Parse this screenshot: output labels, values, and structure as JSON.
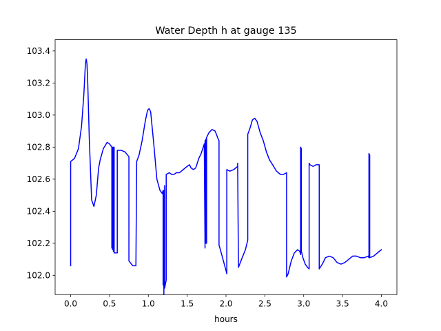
{
  "chart_data": {
    "type": "line",
    "title": "Water Depth h at gauge 135",
    "xlabel": "hours",
    "ylabel": "",
    "xlim": [
      -0.2,
      4.2
    ],
    "ylim": [
      101.88,
      103.47
    ],
    "xticks": [
      0.0,
      0.5,
      1.0,
      1.5,
      2.0,
      2.5,
      3.0,
      3.5,
      4.0
    ],
    "xtick_labels": [
      "0.0",
      "0.5",
      "1.0",
      "1.5",
      "2.0",
      "2.5",
      "3.0",
      "3.5",
      "4.0"
    ],
    "yticks": [
      102.0,
      102.2,
      102.4,
      102.6,
      102.8,
      103.0,
      103.2,
      103.4
    ],
    "ytick_labels": [
      "102.0",
      "102.2",
      "102.4",
      "102.6",
      "102.8",
      "103.0",
      "103.2",
      "103.4"
    ],
    "grid": false,
    "color": "#0000ff",
    "series": [
      {
        "name": "",
        "x": [
          0.0,
          0.0,
          0.05,
          0.1,
          0.14,
          0.17,
          0.19,
          0.2,
          0.21,
          0.22,
          0.24,
          0.27,
          0.3,
          0.33,
          0.36,
          0.38,
          0.42,
          0.47,
          0.5,
          0.53,
          0.53,
          0.54,
          0.54,
          0.55,
          0.55,
          0.56,
          0.56,
          0.58,
          0.6,
          0.6,
          0.65,
          0.7,
          0.75,
          0.75,
          0.8,
          0.84,
          0.85,
          0.88,
          0.92,
          0.96,
          0.99,
          1.01,
          1.03,
          1.07,
          1.11,
          1.15,
          1.18,
          1.19,
          1.19,
          1.2,
          1.2,
          1.21,
          1.21,
          1.23,
          1.23,
          1.27,
          1.3,
          1.33,
          1.36,
          1.4,
          1.45,
          1.5,
          1.53,
          1.55,
          1.58,
          1.61,
          1.63,
          1.65,
          1.68,
          1.72,
          1.73,
          1.73,
          1.74,
          1.74,
          1.75,
          1.75,
          1.78,
          1.82,
          1.86,
          1.9,
          1.91,
          1.91,
          1.95,
          2.0,
          2.01,
          2.01,
          2.05,
          2.1,
          2.15,
          2.15,
          2.16,
          2.2,
          2.25,
          2.28,
          2.28,
          2.31,
          2.34,
          2.37,
          2.4,
          2.44,
          2.48,
          2.52,
          2.56,
          2.6,
          2.65,
          2.7,
          2.74,
          2.78,
          2.78,
          2.8,
          2.84,
          2.88,
          2.92,
          2.95,
          2.96,
          2.96,
          2.97,
          2.97,
          2.99,
          3.02,
          3.05,
          3.07,
          3.07,
          3.08,
          3.12,
          3.16,
          3.19,
          3.2,
          3.2,
          3.24,
          3.28,
          3.33,
          3.38,
          3.43,
          3.48,
          3.53,
          3.58,
          3.63,
          3.68,
          3.73,
          3.78,
          3.83,
          3.84,
          3.84,
          3.85,
          3.85,
          3.9,
          3.95,
          4.0
        ],
        "y": [
          102.06,
          102.71,
          102.73,
          102.79,
          102.93,
          103.13,
          103.32,
          103.35,
          103.32,
          103.2,
          102.85,
          102.47,
          102.43,
          102.5,
          102.67,
          102.72,
          102.79,
          102.83,
          102.82,
          102.8,
          102.17,
          102.8,
          102.16,
          102.8,
          102.15,
          102.8,
          102.14,
          102.14,
          102.14,
          102.78,
          102.78,
          102.77,
          102.74,
          102.09,
          102.06,
          102.06,
          102.71,
          102.75,
          102.84,
          102.96,
          103.03,
          103.04,
          103.02,
          102.82,
          102.6,
          102.53,
          102.51,
          102.53,
          101.94,
          102.53,
          101.88,
          102.56,
          101.92,
          101.97,
          102.63,
          102.64,
          102.63,
          102.63,
          102.64,
          102.64,
          102.66,
          102.68,
          102.69,
          102.67,
          102.66,
          102.67,
          102.7,
          102.73,
          102.76,
          102.82,
          102.17,
          102.84,
          102.2,
          102.85,
          102.2,
          102.86,
          102.89,
          102.91,
          102.9,
          102.85,
          102.84,
          102.19,
          102.12,
          102.03,
          102.01,
          102.66,
          102.65,
          102.66,
          102.68,
          102.7,
          102.05,
          102.1,
          102.16,
          102.22,
          102.88,
          102.92,
          102.97,
          102.98,
          102.96,
          102.89,
          102.84,
          102.77,
          102.72,
          102.69,
          102.65,
          102.63,
          102.63,
          102.64,
          101.99,
          102.01,
          102.09,
          102.14,
          102.16,
          102.15,
          102.13,
          102.8,
          102.79,
          102.15,
          102.11,
          102.07,
          102.05,
          102.04,
          102.7,
          102.69,
          102.68,
          102.69,
          102.69,
          102.69,
          102.04,
          102.07,
          102.11,
          102.12,
          102.11,
          102.08,
          102.07,
          102.08,
          102.1,
          102.12,
          102.12,
          102.11,
          102.11,
          102.12,
          102.11,
          102.76,
          102.75,
          102.11,
          102.12,
          102.14,
          102.16
        ]
      }
    ]
  }
}
